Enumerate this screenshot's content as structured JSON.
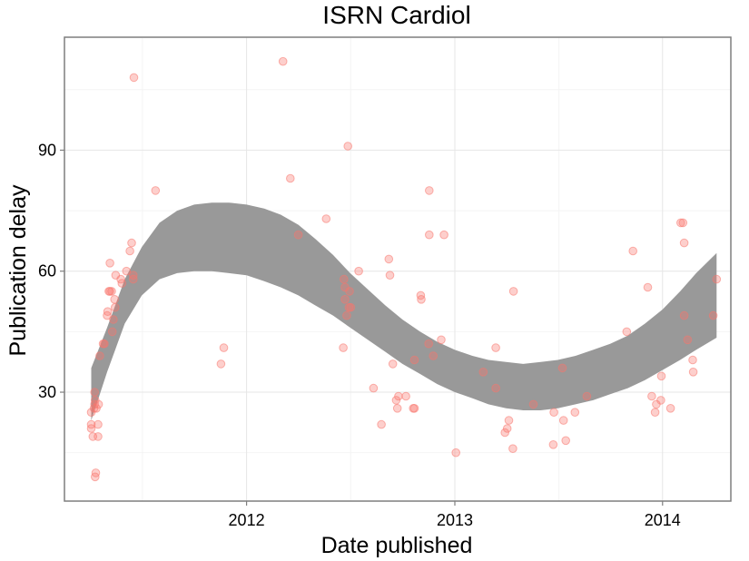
{
  "chart_data": {
    "type": "scatter",
    "title": "ISRN Cardiol",
    "xlabel": "Date published",
    "ylabel": "Publication delay",
    "xlim": [
      "2011-02-15",
      "2014-05-01"
    ],
    "ylim": [
      3,
      118
    ],
    "x_ticks": [
      "2012-01-01",
      "2013-01-01",
      "2014-01-01"
    ],
    "x_tick_labels": [
      "2012",
      "2013",
      "2014"
    ],
    "y_ticks": [
      30,
      60,
      90
    ],
    "y_tick_labels": [
      "30",
      "60",
      "90"
    ],
    "grid": true,
    "legend": "none",
    "point_color": "#f8766d",
    "band_color": "#999999",
    "points": [
      {
        "x": "2011-04-03",
        "y": 22
      },
      {
        "x": "2011-04-03",
        "y": 21
      },
      {
        "x": "2011-04-03",
        "y": 25
      },
      {
        "x": "2011-04-06",
        "y": 19
      },
      {
        "x": "2011-04-08",
        "y": 26
      },
      {
        "x": "2011-04-09",
        "y": 27
      },
      {
        "x": "2011-04-10",
        "y": 28
      },
      {
        "x": "2011-04-09",
        "y": 30
      },
      {
        "x": "2011-04-12",
        "y": 26
      },
      {
        "x": "2011-04-10",
        "y": 9
      },
      {
        "x": "2011-04-11",
        "y": 10
      },
      {
        "x": "2011-04-16",
        "y": 27
      },
      {
        "x": "2011-04-15",
        "y": 22
      },
      {
        "x": "2011-04-15",
        "y": 19
      },
      {
        "x": "2011-04-18",
        "y": 39
      },
      {
        "x": "2011-04-24",
        "y": 42
      },
      {
        "x": "2011-04-26",
        "y": 42
      },
      {
        "x": "2011-05-01",
        "y": 49
      },
      {
        "x": "2011-05-02",
        "y": 50
      },
      {
        "x": "2011-05-04",
        "y": 55
      },
      {
        "x": "2011-05-06",
        "y": 62
      },
      {
        "x": "2011-05-06",
        "y": 55
      },
      {
        "x": "2011-05-09",
        "y": 55
      },
      {
        "x": "2011-05-10",
        "y": 45
      },
      {
        "x": "2011-05-12",
        "y": 48
      },
      {
        "x": "2011-05-14",
        "y": 53
      },
      {
        "x": "2011-05-16",
        "y": 59
      },
      {
        "x": "2011-05-15",
        "y": 51
      },
      {
        "x": "2011-05-25",
        "y": 58
      },
      {
        "x": "2011-05-27",
        "y": 57
      },
      {
        "x": "2011-06-04",
        "y": 60
      },
      {
        "x": "2011-06-10",
        "y": 65
      },
      {
        "x": "2011-06-13",
        "y": 67
      },
      {
        "x": "2011-06-16",
        "y": 59
      },
      {
        "x": "2011-06-16",
        "y": 58
      },
      {
        "x": "2011-06-17",
        "y": 108
      },
      {
        "x": "2011-07-25",
        "y": 80
      },
      {
        "x": "2011-11-17",
        "y": 37
      },
      {
        "x": "2011-11-22",
        "y": 41
      },
      {
        "x": "2012-03-05",
        "y": 112
      },
      {
        "x": "2012-03-18",
        "y": 83
      },
      {
        "x": "2012-04-01",
        "y": 69
      },
      {
        "x": "2012-05-20",
        "y": 73
      },
      {
        "x": "2012-06-19",
        "y": 41
      },
      {
        "x": "2012-06-20",
        "y": 58
      },
      {
        "x": "2012-06-22",
        "y": 56
      },
      {
        "x": "2012-06-22",
        "y": 53
      },
      {
        "x": "2012-06-25",
        "y": 49
      },
      {
        "x": "2012-06-27",
        "y": 91
      },
      {
        "x": "2012-06-29",
        "y": 51
      },
      {
        "x": "2012-06-30",
        "y": 55
      },
      {
        "x": "2012-07-02",
        "y": 51
      },
      {
        "x": "2012-07-16",
        "y": 60
      },
      {
        "x": "2012-08-11",
        "y": 31
      },
      {
        "x": "2012-08-25",
        "y": 22
      },
      {
        "x": "2012-09-07",
        "y": 63
      },
      {
        "x": "2012-09-09",
        "y": 59
      },
      {
        "x": "2012-09-14",
        "y": 37
      },
      {
        "x": "2012-09-20",
        "y": 28
      },
      {
        "x": "2012-09-22",
        "y": 26
      },
      {
        "x": "2012-09-24",
        "y": 29
      },
      {
        "x": "2012-10-07",
        "y": 29
      },
      {
        "x": "2012-10-20",
        "y": 26
      },
      {
        "x": "2012-10-22",
        "y": 26
      },
      {
        "x": "2012-10-22",
        "y": 38
      },
      {
        "x": "2012-11-02",
        "y": 54
      },
      {
        "x": "2012-11-03",
        "y": 53
      },
      {
        "x": "2012-11-16",
        "y": 42
      },
      {
        "x": "2012-11-17",
        "y": 69
      },
      {
        "x": "2012-11-17",
        "y": 80
      },
      {
        "x": "2012-11-24",
        "y": 39
      },
      {
        "x": "2012-12-08",
        "y": 43
      },
      {
        "x": "2012-12-13",
        "y": 69
      },
      {
        "x": "2013-01-03",
        "y": 15
      },
      {
        "x": "2013-02-20",
        "y": 35
      },
      {
        "x": "2013-03-14",
        "y": 41
      },
      {
        "x": "2013-03-14",
        "y": 31
      },
      {
        "x": "2013-03-30",
        "y": 20
      },
      {
        "x": "2013-04-03",
        "y": 21
      },
      {
        "x": "2013-04-06",
        "y": 23
      },
      {
        "x": "2013-04-13",
        "y": 16
      },
      {
        "x": "2013-04-14",
        "y": 55
      },
      {
        "x": "2013-05-19",
        "y": 27
      },
      {
        "x": "2013-06-23",
        "y": 17
      },
      {
        "x": "2013-06-24",
        "y": 25
      },
      {
        "x": "2013-07-09",
        "y": 36
      },
      {
        "x": "2013-07-11",
        "y": 23
      },
      {
        "x": "2013-07-15",
        "y": 18
      },
      {
        "x": "2013-07-31",
        "y": 25
      },
      {
        "x": "2013-08-21",
        "y": 29
      },
      {
        "x": "2013-10-30",
        "y": 45
      },
      {
        "x": "2013-11-10",
        "y": 65
      },
      {
        "x": "2013-12-06",
        "y": 56
      },
      {
        "x": "2013-12-13",
        "y": 29
      },
      {
        "x": "2013-12-19",
        "y": 25
      },
      {
        "x": "2013-12-21",
        "y": 27
      },
      {
        "x": "2013-12-29",
        "y": 28
      },
      {
        "x": "2013-12-30",
        "y": 34
      },
      {
        "x": "2014-01-15",
        "y": 26
      },
      {
        "x": "2014-02-02",
        "y": 72
      },
      {
        "x": "2014-02-06",
        "y": 72
      },
      {
        "x": "2014-02-08",
        "y": 67
      },
      {
        "x": "2014-02-08",
        "y": 49
      },
      {
        "x": "2014-02-14",
        "y": 43
      },
      {
        "x": "2014-02-23",
        "y": 38
      },
      {
        "x": "2014-02-24",
        "y": 35
      },
      {
        "x": "2014-03-31",
        "y": 49
      },
      {
        "x": "2014-04-06",
        "y": 58
      }
    ],
    "smooth_band": [
      {
        "x": "2011-04-03",
        "lower": 23,
        "upper": 36
      },
      {
        "x": "2011-05-01",
        "lower": 35,
        "upper": 46
      },
      {
        "x": "2011-06-01",
        "lower": 47,
        "upper": 58
      },
      {
        "x": "2011-07-01",
        "lower": 54,
        "upper": 66
      },
      {
        "x": "2011-08-01",
        "lower": 58,
        "upper": 72
      },
      {
        "x": "2011-09-01",
        "lower": 59.5,
        "upper": 75
      },
      {
        "x": "2011-10-01",
        "lower": 60,
        "upper": 76.5
      },
      {
        "x": "2011-11-01",
        "lower": 60,
        "upper": 77
      },
      {
        "x": "2011-12-01",
        "lower": 59.5,
        "upper": 77
      },
      {
        "x": "2012-01-01",
        "lower": 59,
        "upper": 76.5
      },
      {
        "x": "2012-02-01",
        "lower": 57.5,
        "upper": 75.5
      },
      {
        "x": "2012-03-01",
        "lower": 56,
        "upper": 74
      },
      {
        "x": "2012-04-01",
        "lower": 54,
        "upper": 71.5
      },
      {
        "x": "2012-05-01",
        "lower": 51.5,
        "upper": 68
      },
      {
        "x": "2012-06-01",
        "lower": 49,
        "upper": 64
      },
      {
        "x": "2012-07-01",
        "lower": 46,
        "upper": 59.5
      },
      {
        "x": "2012-08-01",
        "lower": 43,
        "upper": 55.5
      },
      {
        "x": "2012-09-01",
        "lower": 40,
        "upper": 51.5
      },
      {
        "x": "2012-10-01",
        "lower": 37,
        "upper": 48
      },
      {
        "x": "2012-11-01",
        "lower": 34.5,
        "upper": 45
      },
      {
        "x": "2012-12-01",
        "lower": 32,
        "upper": 42.5
      },
      {
        "x": "2013-01-01",
        "lower": 30,
        "upper": 40.5
      },
      {
        "x": "2013-02-01",
        "lower": 28.5,
        "upper": 39
      },
      {
        "x": "2013-03-01",
        "lower": 27,
        "upper": 38
      },
      {
        "x": "2013-04-01",
        "lower": 26,
        "upper": 37.5
      },
      {
        "x": "2013-05-01",
        "lower": 25.5,
        "upper": 37
      },
      {
        "x": "2013-06-01",
        "lower": 25.5,
        "upper": 37.5
      },
      {
        "x": "2013-07-01",
        "lower": 26,
        "upper": 38
      },
      {
        "x": "2013-08-01",
        "lower": 27,
        "upper": 39
      },
      {
        "x": "2013-09-01",
        "lower": 28,
        "upper": 40.5
      },
      {
        "x": "2013-10-01",
        "lower": 29.5,
        "upper": 42
      },
      {
        "x": "2013-11-01",
        "lower": 31,
        "upper": 44
      },
      {
        "x": "2013-12-01",
        "lower": 33,
        "upper": 47
      },
      {
        "x": "2014-01-01",
        "lower": 35.5,
        "upper": 50.5
      },
      {
        "x": "2014-02-01",
        "lower": 38,
        "upper": 55
      },
      {
        "x": "2014-03-01",
        "lower": 40.5,
        "upper": 59.5
      },
      {
        "x": "2014-04-06",
        "lower": 43.5,
        "upper": 64.5
      }
    ]
  }
}
